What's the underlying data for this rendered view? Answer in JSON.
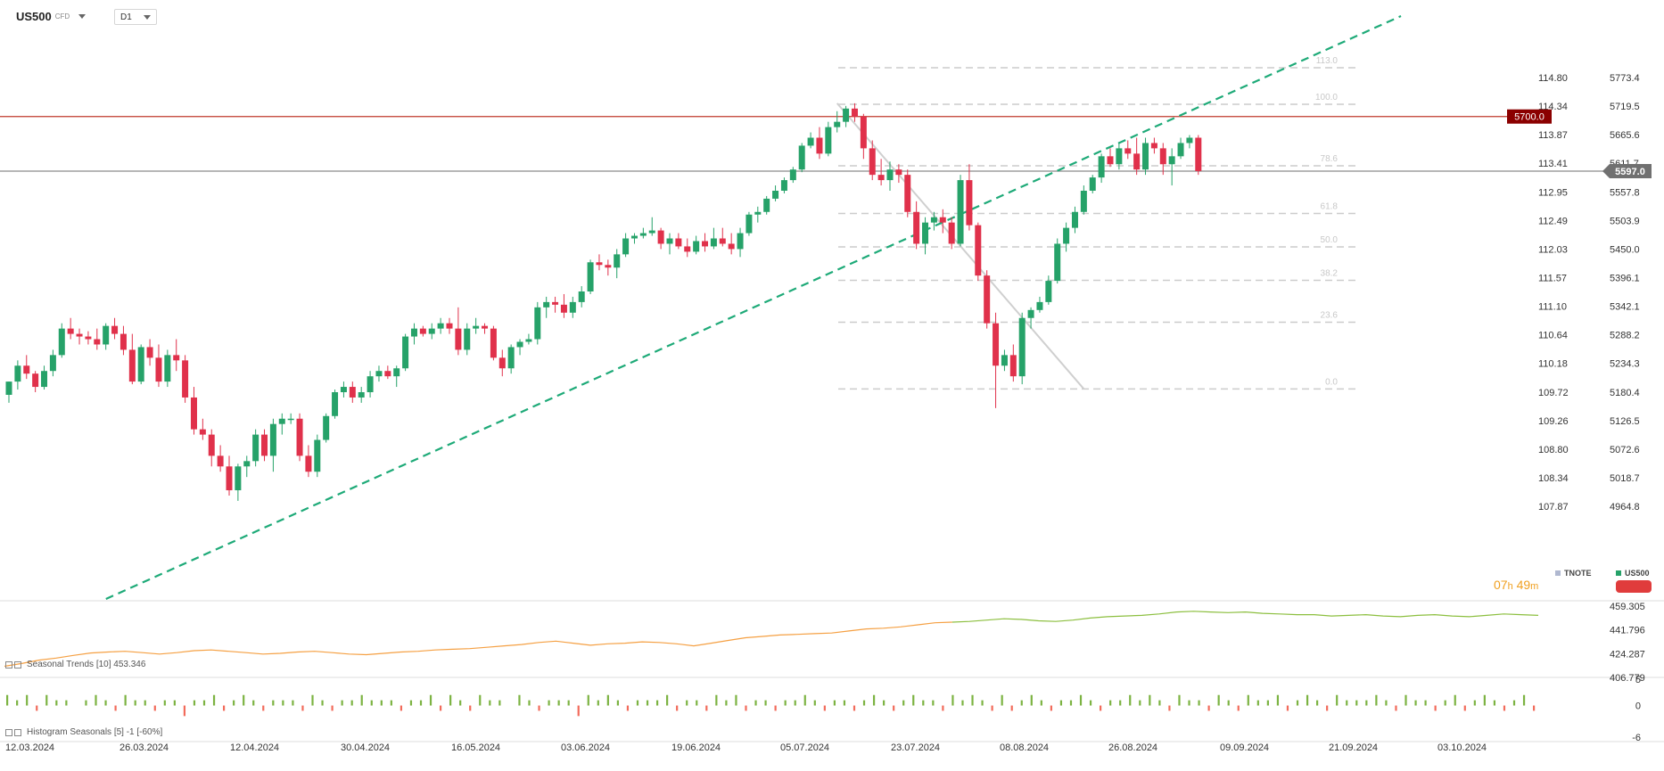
{
  "header": {
    "symbol": "US500",
    "instrument_type": "CFD",
    "timeframe": "D1"
  },
  "colors": {
    "up": "#26a269",
    "down": "#e0314b",
    "trendline": "#1eaa78",
    "resistance": "#c0392b",
    "current_price_line": "#8a8a8a",
    "fib_line": "#cccccc",
    "tnote_line": "#f5a043",
    "tnote_line_late": "#8cbf3f",
    "countdown": "#f0a020"
  },
  "chart_data": [
    {
      "type": "candlestick",
      "name": "US500",
      "yaxis_right": {
        "range": [
          4911.0,
          5827.3
        ],
        "ticks": [
          "5773.4",
          "5719.5",
          "5665.6",
          "5611.7",
          "5557.8",
          "5503.9",
          "5450.0",
          "5396.1",
          "5342.1",
          "5288.2",
          "5234.3",
          "5180.4",
          "5126.5",
          "5072.6",
          "5018.7",
          "4964.8"
        ]
      },
      "yaxis_left": {
        "range": [
          107.41,
          115.26
        ],
        "ticks": [
          "114.80",
          "114.34",
          "113.87",
          "113.41",
          "112.95",
          "112.49",
          "112.03",
          "111.57",
          "111.10",
          "110.64",
          "110.18",
          "109.72",
          "109.26",
          "108.80",
          "108.34",
          "107.87"
        ]
      },
      "x_tick_labels": [
        "12.03.2024",
        "26.03.2024",
        "12.04.2024",
        "30.04.2024",
        "16.05.2024",
        "03.06.2024",
        "19.06.2024",
        "05.07.2024",
        "23.07.2024",
        "08.08.2024",
        "26.08.2024",
        "09.09.2024",
        "21.09.2024",
        "03.10.2024"
      ],
      "resistance_level": {
        "value": 5700.0,
        "label": "5700.0"
      },
      "current_price": {
        "value": 5597.0,
        "label": "5597.0"
      },
      "fibonacci": {
        "levels": [
          {
            "label": "113.0",
            "value": 5792
          },
          {
            "label": "100.0",
            "value": 5723
          },
          {
            "label": "78.6",
            "value": 5607
          },
          {
            "label": "61.8",
            "value": 5517
          },
          {
            "label": "50.0",
            "value": 5454
          },
          {
            "label": "38.2",
            "value": 5391
          },
          {
            "label": "23.6",
            "value": 5312
          },
          {
            "label": "0.0",
            "value": 5186
          }
        ]
      },
      "candles": [
        [
          5175,
          5200,
          5160,
          5200
        ],
        [
          5200,
          5240,
          5185,
          5230
        ],
        [
          5230,
          5250,
          5205,
          5215
        ],
        [
          5215,
          5220,
          5180,
          5190
        ],
        [
          5190,
          5230,
          5185,
          5220
        ],
        [
          5220,
          5260,
          5210,
          5250
        ],
        [
          5250,
          5310,
          5245,
          5300
        ],
        [
          5300,
          5320,
          5280,
          5290
        ],
        [
          5290,
          5300,
          5270,
          5285
        ],
        [
          5285,
          5295,
          5270,
          5280
        ],
        [
          5280,
          5300,
          5260,
          5270
        ],
        [
          5270,
          5310,
          5260,
          5305
        ],
        [
          5305,
          5320,
          5280,
          5290
        ],
        [
          5290,
          5305,
          5250,
          5260
        ],
        [
          5260,
          5290,
          5195,
          5200
        ],
        [
          5200,
          5270,
          5195,
          5265
        ],
        [
          5265,
          5280,
          5230,
          5245
        ],
        [
          5245,
          5270,
          5190,
          5200
        ],
        [
          5200,
          5260,
          5190,
          5250
        ],
        [
          5250,
          5280,
          5220,
          5240
        ],
        [
          5240,
          5250,
          5160,
          5170
        ],
        [
          5170,
          5190,
          5100,
          5110
        ],
        [
          5110,
          5130,
          5090,
          5100
        ],
        [
          5100,
          5110,
          5040,
          5060
        ],
        [
          5060,
          5080,
          5030,
          5040
        ],
        [
          5040,
          5060,
          4985,
          4995
        ],
        [
          4995,
          5045,
          4975,
          5040
        ],
        [
          5040,
          5060,
          5020,
          5050
        ],
        [
          5050,
          5110,
          5040,
          5100
        ],
        [
          5100,
          5110,
          5050,
          5060
        ],
        [
          5060,
          5130,
          5030,
          5120
        ],
        [
          5120,
          5140,
          5100,
          5130
        ],
        [
          5130,
          5140,
          5120,
          5130
        ],
        [
          5130,
          5140,
          5050,
          5060
        ],
        [
          5060,
          5080,
          5020,
          5030
        ],
        [
          5030,
          5100,
          5020,
          5090
        ],
        [
          5090,
          5140,
          5085,
          5135
        ],
        [
          5135,
          5185,
          5130,
          5180
        ],
        [
          5180,
          5200,
          5170,
          5190
        ],
        [
          5190,
          5200,
          5160,
          5170
        ],
        [
          5170,
          5190,
          5160,
          5180
        ],
        [
          5180,
          5220,
          5170,
          5210
        ],
        [
          5210,
          5230,
          5200,
          5220
        ],
        [
          5220,
          5230,
          5205,
          5210
        ],
        [
          5210,
          5230,
          5190,
          5225
        ],
        [
          5225,
          5290,
          5220,
          5285
        ],
        [
          5285,
          5310,
          5270,
          5300
        ],
        [
          5300,
          5305,
          5285,
          5290
        ],
        [
          5290,
          5310,
          5280,
          5300
        ],
        [
          5300,
          5320,
          5290,
          5310
        ],
        [
          5310,
          5320,
          5290,
          5300
        ],
        [
          5300,
          5340,
          5250,
          5260
        ],
        [
          5260,
          5310,
          5250,
          5300
        ],
        [
          5300,
          5320,
          5290,
          5305
        ],
        [
          5305,
          5310,
          5290,
          5300
        ],
        [
          5300,
          5305,
          5240,
          5245
        ],
        [
          5245,
          5260,
          5210,
          5225
        ],
        [
          5225,
          5270,
          5215,
          5265
        ],
        [
          5265,
          5280,
          5250,
          5275
        ],
        [
          5275,
          5290,
          5270,
          5280
        ],
        [
          5280,
          5350,
          5270,
          5340
        ],
        [
          5340,
          5360,
          5320,
          5350
        ],
        [
          5350,
          5360,
          5330,
          5345
        ],
        [
          5345,
          5365,
          5320,
          5330
        ],
        [
          5330,
          5360,
          5320,
          5350
        ],
        [
          5350,
          5380,
          5340,
          5370
        ],
        [
          5370,
          5430,
          5365,
          5425
        ],
        [
          5425,
          5440,
          5410,
          5420
        ],
        [
          5420,
          5430,
          5400,
          5415
        ],
        [
          5415,
          5450,
          5395,
          5440
        ],
        [
          5440,
          5480,
          5435,
          5470
        ],
        [
          5470,
          5480,
          5460,
          5475
        ],
        [
          5475,
          5490,
          5470,
          5480
        ],
        [
          5480,
          5510,
          5475,
          5485
        ],
        [
          5485,
          5490,
          5450,
          5460
        ],
        [
          5460,
          5480,
          5440,
          5470
        ],
        [
          5470,
          5480,
          5450,
          5455
        ],
        [
          5455,
          5470,
          5435,
          5445
        ],
        [
          5445,
          5475,
          5440,
          5465
        ],
        [
          5465,
          5480,
          5445,
          5455
        ],
        [
          5455,
          5490,
          5450,
          5470
        ],
        [
          5470,
          5490,
          5455,
          5460
        ],
        [
          5460,
          5480,
          5440,
          5450
        ],
        [
          5450,
          5490,
          5435,
          5480
        ],
        [
          5480,
          5520,
          5475,
          5515
        ],
        [
          5515,
          5530,
          5500,
          5520
        ],
        [
          5520,
          5550,
          5515,
          5545
        ],
        [
          5545,
          5570,
          5540,
          5560
        ],
        [
          5560,
          5585,
          5555,
          5580
        ],
        [
          5580,
          5605,
          5575,
          5600
        ],
        [
          5600,
          5650,
          5595,
          5645
        ],
        [
          5645,
          5670,
          5640,
          5660
        ],
        [
          5660,
          5680,
          5620,
          5630
        ],
        [
          5630,
          5690,
          5625,
          5680
        ],
        [
          5680,
          5710,
          5670,
          5690
        ],
        [
          5690,
          5720,
          5680,
          5715
        ],
        [
          5715,
          5725,
          5690,
          5700
        ],
        [
          5700,
          5705,
          5620,
          5640
        ],
        [
          5640,
          5655,
          5580,
          5590
        ],
        [
          5590,
          5620,
          5570,
          5580
        ],
        [
          5580,
          5615,
          5560,
          5600
        ],
        [
          5600,
          5610,
          5575,
          5590
        ],
        [
          5590,
          5600,
          5510,
          5520
        ],
        [
          5520,
          5540,
          5450,
          5460
        ],
        [
          5460,
          5510,
          5440,
          5500
        ],
        [
          5500,
          5520,
          5485,
          5510
        ],
        [
          5510,
          5525,
          5480,
          5500
        ],
        [
          5500,
          5510,
          5450,
          5460
        ],
        [
          5460,
          5590,
          5455,
          5580
        ],
        [
          5580,
          5610,
          5485,
          5495
        ],
        [
          5495,
          5500,
          5390,
          5400
        ],
        [
          5400,
          5410,
          5300,
          5310
        ],
        [
          5310,
          5330,
          5150,
          5230
        ],
        [
          5230,
          5260,
          5220,
          5250
        ],
        [
          5250,
          5270,
          5200,
          5210
        ],
        [
          5210,
          5330,
          5195,
          5320
        ],
        [
          5320,
          5340,
          5300,
          5335
        ],
        [
          5335,
          5360,
          5330,
          5350
        ],
        [
          5350,
          5400,
          5345,
          5390
        ],
        [
          5390,
          5470,
          5385,
          5460
        ],
        [
          5460,
          5500,
          5445,
          5490
        ],
        [
          5490,
          5530,
          5480,
          5520
        ],
        [
          5520,
          5570,
          5515,
          5560
        ],
        [
          5560,
          5590,
          5555,
          5585
        ],
        [
          5585,
          5630,
          5575,
          5625
        ],
        [
          5625,
          5640,
          5605,
          5610
        ],
        [
          5610,
          5650,
          5600,
          5640
        ],
        [
          5640,
          5655,
          5620,
          5630
        ],
        [
          5630,
          5660,
          5590,
          5600
        ],
        [
          5600,
          5660,
          5590,
          5650
        ],
        [
          5650,
          5660,
          5630,
          5640
        ],
        [
          5640,
          5650,
          5590,
          5610
        ],
        [
          5610,
          5640,
          5570,
          5625
        ],
        [
          5625,
          5660,
          5620,
          5650
        ],
        [
          5650,
          5665,
          5640,
          5660
        ],
        [
          5660,
          5665,
          5590,
          5597
        ]
      ],
      "trendline": {
        "from": {
          "candle": 10,
          "price": 4911
        },
        "to": {
          "candle": 158,
          "price": 5815
        }
      },
      "fib_diagonal": {
        "from": {
          "candle": 94,
          "price": 5725
        },
        "to": {
          "candle": 121,
          "price": 5186
        }
      }
    },
    {
      "type": "line",
      "name": "Seasonal Trends",
      "label": "Seasonal  Trends  [10]  453.346",
      "y_ticks": [
        "459.305",
        "441.796",
        "424.287",
        "406.779"
      ],
      "ylim": [
        406.779,
        459.305
      ],
      "values": [
        415.0,
        417.0,
        419.5,
        421.0,
        423.0,
        424.8,
        425.5,
        426.0,
        425.0,
        424.0,
        425.0,
        426.5,
        427.0,
        426.0,
        425.0,
        424.0,
        424.5,
        425.5,
        426.0,
        425.0,
        424.0,
        423.5,
        424.5,
        425.5,
        426.0,
        427.0,
        427.5,
        428.0,
        429.0,
        430.0,
        431.0,
        432.5,
        433.5,
        432.0,
        430.5,
        431.5,
        432.0,
        433.0,
        432.5,
        431.5,
        430.0,
        432.0,
        434.0,
        436.0,
        437.0,
        438.0,
        438.5,
        439.0,
        439.5,
        441.0,
        442.5,
        443.0,
        444.0,
        445.5,
        447.0,
        447.5,
        448.0,
        449.0,
        450.0,
        449.5,
        448.5,
        448.0,
        449.0,
        450.5,
        451.5,
        452.0,
        452.5,
        453.5,
        455.0,
        455.5,
        455.0,
        454.5,
        455.0,
        454.0,
        453.5,
        453.0,
        453.0,
        452.0,
        452.5,
        453.0,
        452.0,
        451.5,
        452.5,
        453.0,
        452.0,
        451.5,
        452.5,
        453.5,
        453.0,
        452.5
      ],
      "color_switch_index": 55
    },
    {
      "type": "bar",
      "name": "Histogram Seasonals",
      "label": "Histogram  Seasonals  [5]  -1  [-60%]",
      "y_ticks": [
        "5",
        "0",
        "-6"
      ],
      "ylim": [
        -6,
        5
      ],
      "values": [
        2,
        1,
        2,
        -1,
        2,
        1,
        1,
        0,
        1,
        2,
        1,
        -1,
        2,
        1,
        1,
        -1,
        1,
        1,
        -2,
        1,
        1,
        2,
        -1,
        1,
        2,
        1,
        -1,
        1,
        1,
        1,
        -1,
        2,
        1,
        -1,
        1,
        1,
        2,
        1,
        1,
        1,
        -1,
        1,
        1,
        2,
        -1,
        2,
        1,
        -1,
        2,
        1,
        1,
        0,
        2,
        1,
        -1,
        1,
        1,
        1,
        -2,
        2,
        1,
        2,
        1,
        -1,
        1,
        1,
        1,
        2,
        -1,
        1,
        1,
        -1,
        2,
        1,
        2,
        -1,
        1,
        1,
        -1,
        1,
        1,
        2,
        1,
        -1,
        1,
        1,
        -1,
        1,
        2,
        1,
        -1,
        1,
        2,
        1,
        1,
        -1,
        2,
        1,
        2,
        1,
        -1,
        2,
        -1,
        1,
        2,
        1,
        -1,
        1,
        1,
        2,
        1,
        -1,
        1,
        1,
        2,
        1,
        2,
        1,
        -1,
        2,
        1,
        1,
        -1,
        2,
        1,
        -1,
        2,
        1,
        1,
        2,
        -1,
        1,
        2,
        1,
        -1,
        2,
        1,
        1,
        1,
        2,
        1,
        -1,
        2,
        1,
        1,
        -1,
        1,
        2,
        -1,
        1,
        2,
        1,
        -1,
        1,
        2,
        -1
      ]
    }
  ],
  "legend": {
    "tnote": "TNOTE",
    "us500": "US500"
  },
  "countdown": {
    "hours": "07",
    "h_unit": "h",
    "minutes": "49",
    "m_unit": "m"
  }
}
